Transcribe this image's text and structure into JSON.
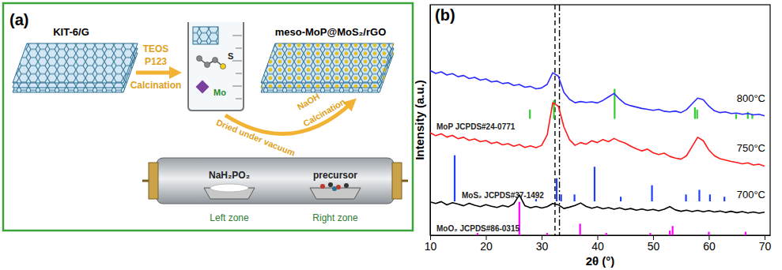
{
  "panel_a": {
    "label": "(a)",
    "start_material": "KIT-6/G",
    "reagents": [
      "TEOS",
      "P123"
    ],
    "first_step": "Calcination",
    "elements": [
      "S",
      "Mo"
    ],
    "product": "meso-MoP@MoS₂/rGO",
    "drying": "Dried under vacuum",
    "second_step": [
      "NaOH",
      "Calcination"
    ],
    "boats": [
      "NaH₂PO₂",
      "precursor"
    ],
    "zones": [
      "Left zone",
      "Right zone"
    ]
  },
  "chart_data": {
    "type": "line",
    "panel_label": "(b)",
    "x_label": "2θ (°)",
    "y_label": "Intensity (a.u.)",
    "xlim": [
      10,
      71
    ],
    "xticks": [
      10,
      20,
      30,
      40,
      50,
      60,
      70
    ],
    "ylim": [
      0,
      100
    ],
    "tick_labels": "x",
    "grid": false,
    "x": [
      10,
      11,
      12,
      13,
      14,
      15,
      16,
      17,
      18,
      19,
      20,
      21,
      22,
      23,
      24,
      25,
      26,
      27,
      28,
      29,
      30,
      31,
      32,
      33,
      34,
      35,
      36,
      37,
      38,
      39,
      40,
      41,
      42,
      43,
      44,
      45,
      46,
      47,
      48,
      49,
      50,
      51,
      52,
      53,
      54,
      55,
      56,
      57,
      58,
      59,
      60,
      61,
      62,
      63,
      64,
      65,
      66,
      67,
      68,
      69,
      70
    ],
    "series": [
      {
        "name": "800°C",
        "color": "#2b2bff",
        "values": [
          71.5,
          70.2,
          70.9,
          69.5,
          70.1,
          68.8,
          69.3,
          68.0,
          68.5,
          67.3,
          67.8,
          66.5,
          66.9,
          65.8,
          66.2,
          65.0,
          65.4,
          64.2,
          64.6,
          63.5,
          63.9,
          65.5,
          70.5,
          69.0,
          62.0,
          59.0,
          57.5,
          58.0,
          57.6,
          57.9,
          57.4,
          58.5,
          60.0,
          61.5,
          59.0,
          57.0,
          56.2,
          55.6,
          55.0,
          54.6,
          54.2,
          54.6,
          53.8,
          53.5,
          53.9,
          53.2,
          54.5,
          57.0,
          59.5,
          58.8,
          56.0,
          54.0,
          53.2,
          53.5,
          52.8,
          53.0,
          52.5,
          52.8,
          52.2,
          52.5,
          51.8
        ]
      },
      {
        "name": "750°C",
        "color": "#ff1a1a",
        "values": [
          44.5,
          43.2,
          44.0,
          42.6,
          43.3,
          41.9,
          42.5,
          41.2,
          41.8,
          40.6,
          41.1,
          39.8,
          40.4,
          39.2,
          39.7,
          38.6,
          39.4,
          38.1,
          38.8,
          38.0,
          39.0,
          43.5,
          57.5,
          56.0,
          47.0,
          41.5,
          39.0,
          40.2,
          39.5,
          41.0,
          40.2,
          41.5,
          40.6,
          42.0,
          40.8,
          40.0,
          38.6,
          37.5,
          36.6,
          37.4,
          35.8,
          35.0,
          35.6,
          34.2,
          33.5,
          33.0,
          34.5,
          38.5,
          42.5,
          41.0,
          37.0,
          34.5,
          33.2,
          32.6,
          32.0,
          31.6,
          31.0,
          31.4,
          30.5,
          30.8,
          30.0
        ]
      },
      {
        "name": "700°C",
        "color": "#000000",
        "values": [
          14.5,
          13.8,
          14.6,
          13.2,
          14.1,
          13.5,
          12.8,
          13.9,
          13.0,
          12.4,
          13.3,
          12.6,
          12.1,
          12.9,
          12.3,
          13.6,
          17.5,
          12.8,
          11.9,
          12.5,
          11.8,
          12.4,
          13.8,
          13.2,
          11.6,
          12.2,
          12.9,
          14.0,
          12.5,
          11.7,
          12.3,
          11.5,
          12.0,
          11.3,
          11.9,
          11.1,
          11.6,
          10.9,
          11.4,
          10.8,
          11.2,
          10.6,
          11.3,
          12.4,
          11.0,
          10.4,
          10.9,
          10.3,
          10.8,
          10.2,
          10.7,
          10.1,
          10.5,
          9.9,
          10.4,
          9.8,
          10.3,
          9.7,
          10.1,
          9.6,
          10.0
        ]
      }
    ],
    "references": [
      {
        "name": "MoP JCPDS#24-0771",
        "color": "#33cc33",
        "baseline": 50.5,
        "positions": [
          27.9,
          32.2,
          43.1,
          57.5,
          57.9,
          64.9,
          67.0,
          67.8
        ],
        "heights": [
          4,
          8,
          13,
          5,
          4,
          2,
          3,
          2
        ]
      },
      {
        "name": "MoS₂ JCPDS#37-1492",
        "color": "#1f3fff",
        "baseline": 14.7,
        "positions": [
          14.4,
          29.0,
          32.7,
          33.5,
          35.9,
          39.5,
          44.2,
          49.8,
          55.9,
          58.3,
          60.2,
          62.8
        ],
        "heights": [
          20,
          1,
          10,
          3,
          3,
          15,
          2,
          7,
          3,
          5,
          3,
          2
        ]
      },
      {
        "name": "MoO₂ JCPDS#86-0315",
        "color": "#ff00ff",
        "baseline": 0,
        "positions": [
          18.5,
          26.0,
          31.0,
          36.9,
          41.6,
          49.5,
          53.0,
          53.5,
          60.0,
          66.6
        ],
        "heights": [
          1,
          14.5,
          1,
          5,
          1,
          1,
          2,
          4,
          1.5,
          1.5
        ]
      }
    ],
    "reference_lines": [
      32.4,
      33.2
    ]
  }
}
